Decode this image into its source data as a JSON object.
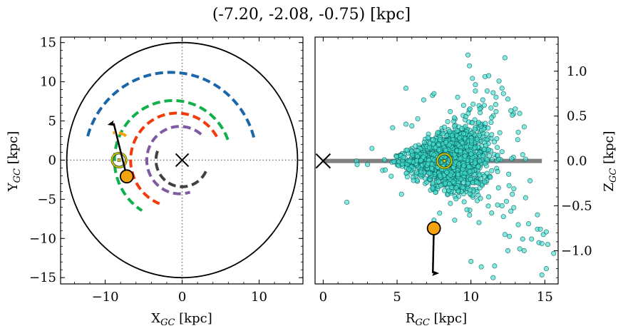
{
  "figure": {
    "title": "(-7.20, -2.08, -0.75) [kpc]"
  },
  "chart_data": [
    {
      "type": "scatter",
      "panel": "left",
      "title": "",
      "xlabel": "X_GC [kpc]",
      "xlabel_main": "X",
      "xlabel_sub": "GC",
      "xlabel_unit": " [kpc]",
      "ylabel": "Y_GC [kpc]",
      "ylabel_main": "Y",
      "ylabel_sub": "GC",
      "ylabel_unit": " [kpc]",
      "xlim": [
        -15.8,
        15.7
      ],
      "ylim": [
        -15.8,
        15.7
      ],
      "xticks": [
        -10,
        0,
        10
      ],
      "xtick_labels": [
        "−10",
        "0",
        "10"
      ],
      "yticks": [
        15,
        10,
        5,
        0,
        -5,
        -10,
        -15
      ],
      "ytick_labels": [
        "15",
        "10",
        "5",
        "0",
        "−5",
        "−10",
        "−15"
      ],
      "grid": false,
      "reference_lines": {
        "x0_dotted": true,
        "y0_dotted": true
      },
      "boundary_circle": {
        "center": [
          0,
          0
        ],
        "radius": 15,
        "color": "#000000"
      },
      "galactic_center": {
        "x": 0,
        "y": 0,
        "marker": "x",
        "color": "#000000"
      },
      "sun": {
        "x": -8.2,
        "y": 0.0,
        "marker": "sun-symbol",
        "color": "#c8c800"
      },
      "target": {
        "x": -7.2,
        "y": -2.08,
        "color": "#f5a40f"
      },
      "velocity_arrow": {
        "from": [
          -7.2,
          -2.08
        ],
        "to": [
          -8.9,
          4.7
        ],
        "color": "#000000"
      },
      "spiral_arms": [
        {
          "name": "outer-arm",
          "color": "#1a66a8",
          "center": [
            -1.5,
            0
          ],
          "radius": 11.2,
          "theta_start_deg": 15,
          "theta_end_deg": 166
        },
        {
          "name": "perseus-arm",
          "color": "#10b04a",
          "center": [
            -1.2,
            0
          ],
          "radius": 7.6,
          "theta_start_deg": 20,
          "theta_end_deg": 238
        },
        {
          "name": "sagittarius-arm",
          "color": "#f23a0c",
          "center": [
            -0.7,
            0
          ],
          "radius": 6.0,
          "theta_start_deg": 30,
          "theta_end_deg": 248
        },
        {
          "name": "scutum-arm",
          "color": "#7e5ba0",
          "center": [
            -0.3,
            0
          ],
          "radius": 4.3,
          "theta_start_deg": 50,
          "theta_end_deg": 288
        },
        {
          "name": "norma-arm",
          "color": "#404040",
          "center": [
            0,
            0
          ],
          "radius": 3.4,
          "theta_start_deg": 160,
          "theta_end_deg": 340
        },
        {
          "name": "local-arm",
          "color": "#f5a40f",
          "center": [
            -8.6,
            1.2
          ],
          "radius": 2.3,
          "theta_start_deg": 55,
          "theta_end_deg": 100
        }
      ]
    },
    {
      "type": "scatter",
      "panel": "right",
      "title": "",
      "xlabel": "R_GC [kpc]",
      "xlabel_main": "R",
      "xlabel_sub": "GC",
      "xlabel_unit": " [kpc]",
      "ylabel": "Z_GC [kpc]",
      "ylabel_main": "Z",
      "ylabel_sub": "GC",
      "ylabel_unit": " [kpc]",
      "ylabel_side": "right",
      "xlim": [
        -0.55,
        15.9
      ],
      "ylim": [
        -1.37,
        1.38
      ],
      "xticks": [
        0,
        5,
        10,
        15
      ],
      "xtick_labels": [
        "0",
        "5",
        "10",
        "15"
      ],
      "yticks": [
        1.0,
        0.5,
        0.0,
        -0.5,
        -1.0
      ],
      "ytick_labels": [
        "1.0",
        "0.5",
        "0.0",
        "−0.5",
        "−1.0"
      ],
      "grid": false,
      "galactic_plane": {
        "z": 0,
        "r_range": [
          0,
          14.8
        ],
        "color": "#808080"
      },
      "galactic_center": {
        "r": 0,
        "z": 0,
        "marker": "x",
        "color": "#000000"
      },
      "sun": {
        "r": 8.2,
        "z": 0.0,
        "marker": "sun-symbol",
        "color": "#c8c800"
      },
      "target": {
        "r": 7.49,
        "z": -0.75,
        "color": "#f5a40f"
      },
      "velocity_arrow": {
        "from": [
          7.49,
          -0.75
        ],
        "to": [
          7.42,
          -1.25
        ],
        "color": "#000000"
      },
      "scatter_style": {
        "face": "#40e0d0",
        "edge": "#0a5a5a",
        "alpha": 0.65
      },
      "scatter_core": {
        "count": 1400,
        "description": "Dense cluster of stars centered near the Sun, flaring with radius",
        "r_mean": 8.6,
        "r_sd": 1.9,
        "r_min": 3.8,
        "r_max": 14.5,
        "z_sd_base": 0.05,
        "z_sd_slope": 0.035
      },
      "scatter_outliers": [
        [
          1.6,
          -0.46
        ],
        [
          2.25,
          0.0
        ],
        [
          2.3,
          -0.04
        ],
        [
          3.3,
          0.14
        ],
        [
          3.0,
          -0.04
        ],
        [
          4.6,
          -0.17
        ],
        [
          4.7,
          0.37
        ],
        [
          4.2,
          -0.1
        ],
        [
          5.3,
          -0.37
        ],
        [
          5.6,
          0.81
        ],
        [
          5.6,
          0.41
        ],
        [
          6.0,
          0.39
        ],
        [
          6.4,
          0.47
        ],
        [
          6.8,
          0.68
        ],
        [
          7.4,
          0.73
        ],
        [
          7.5,
          0.75
        ],
        [
          7.5,
          -0.66
        ],
        [
          8.6,
          0.55
        ],
        [
          8.9,
          -0.66
        ],
        [
          9.1,
          0.71
        ],
        [
          9.5,
          0.62
        ],
        [
          9.8,
          1.18
        ],
        [
          9.9,
          1.06
        ],
        [
          10.1,
          0.92
        ],
        [
          10.3,
          0.85
        ],
        [
          10.3,
          0.78
        ],
        [
          10.6,
          0.58
        ],
        [
          10.8,
          0.68
        ],
        [
          10.9,
          0.62
        ],
        [
          11.1,
          0.78
        ],
        [
          11.2,
          0.95
        ],
        [
          11.5,
          0.76
        ],
        [
          11.9,
          0.89
        ],
        [
          11.7,
          0.71
        ],
        [
          12.1,
          0.81
        ],
        [
          12.2,
          0.75
        ],
        [
          12.3,
          1.15
        ],
        [
          12.5,
          0.69
        ],
        [
          13.0,
          0.58
        ],
        [
          12.7,
          0.56
        ],
        [
          13.6,
          0.38
        ],
        [
          13.3,
          0.53
        ],
        [
          12.8,
          0.51
        ],
        [
          13.5,
          0.07
        ],
        [
          13.7,
          0.02
        ],
        [
          13.2,
          0.32
        ],
        [
          11.7,
          0.55
        ],
        [
          10.0,
          -1.12
        ],
        [
          10.7,
          -1.18
        ],
        [
          11.6,
          -1.17
        ],
        [
          11.5,
          -1.3
        ],
        [
          12.3,
          -0.82
        ],
        [
          12.6,
          -0.84
        ],
        [
          12.2,
          -0.62
        ],
        [
          12.7,
          -0.56
        ],
        [
          13.2,
          -0.71
        ],
        [
          13.5,
          -0.87
        ],
        [
          13.9,
          -0.7
        ],
        [
          14.1,
          -0.87
        ],
        [
          14.5,
          -0.76
        ],
        [
          14.6,
          -0.91
        ],
        [
          14.7,
          -0.76
        ],
        [
          14.9,
          -0.82
        ],
        [
          15.1,
          -0.79
        ],
        [
          14.8,
          -0.92
        ],
        [
          15.2,
          -0.93
        ],
        [
          15.6,
          -1.03
        ],
        [
          15.1,
          -1.2
        ],
        [
          14.8,
          -1.27
        ],
        [
          13.3,
          -0.98
        ],
        [
          13.6,
          -1.0
        ],
        [
          12.5,
          -1.0
        ],
        [
          12.1,
          -0.5
        ],
        [
          12.9,
          -0.52
        ],
        [
          14.5,
          -0.6
        ],
        [
          11.8,
          -0.49
        ],
        [
          12.4,
          -0.45
        ],
        [
          13.7,
          -0.41
        ],
        [
          14.0,
          -0.22
        ],
        [
          12.8,
          -0.37
        ],
        [
          12.9,
          -0.31
        ],
        [
          11.2,
          -0.4
        ],
        [
          10.4,
          -0.24
        ],
        [
          11.4,
          -0.58
        ],
        [
          9.0,
          -0.3
        ],
        [
          8.5,
          -0.33
        ],
        [
          7.4,
          -0.3
        ],
        [
          7.6,
          -0.35
        ]
      ]
    }
  ]
}
